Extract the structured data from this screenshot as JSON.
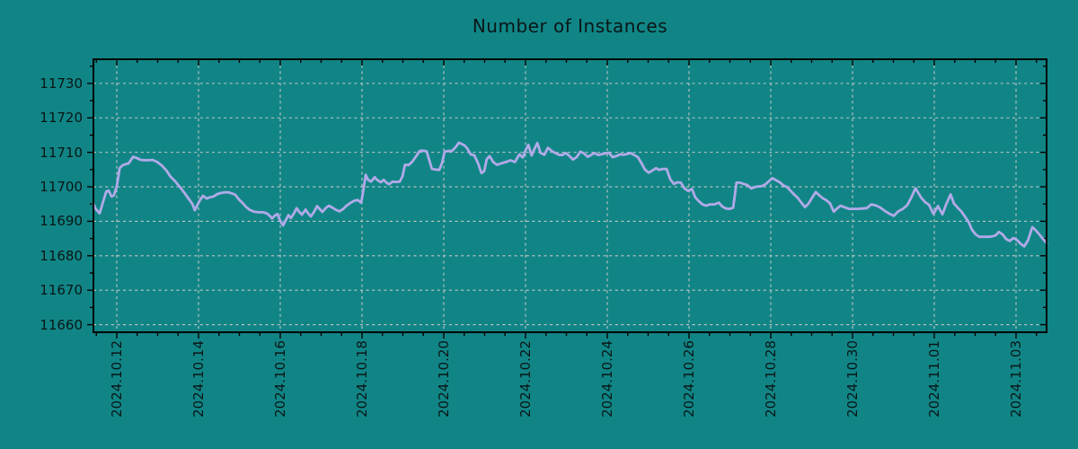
{
  "chart_data": {
    "type": "line",
    "title": "Number of Instances",
    "xlabel": "",
    "ylabel": "",
    "grid": true,
    "legend_position": "none",
    "x_unit": "days since 2024-10-12 00:00",
    "xlim": [
      -0.571,
      22.747
    ],
    "ylim": [
      11657.8,
      11737.0
    ],
    "x_major_tick_positions": [
      0,
      2,
      4,
      6,
      8,
      10,
      12,
      14,
      16,
      18,
      20,
      22
    ],
    "x_tick_labels": [
      "2024.10.12",
      "2024.10.14",
      "2024.10.16",
      "2024.10.18",
      "2024.10.20",
      "2024.10.22",
      "2024.10.24",
      "2024.10.26",
      "2024.10.28",
      "2024.10.30",
      "2024.11.01",
      "2024.11.03"
    ],
    "x_minor_step": 0.5,
    "y_major_ticks": [
      11660,
      11670,
      11680,
      11690,
      11700,
      11710,
      11720,
      11730
    ],
    "y_minor_step": 5,
    "colors": {
      "background": "#118586",
      "line": "#b1aae8",
      "grid": "#c6c6c6",
      "axis": "#000000",
      "text": "#0a1616"
    },
    "series": [
      {
        "name": "instances",
        "points": [
          [
            -0.57,
            11695.0
          ],
          [
            -0.51,
            11693.5
          ],
          [
            -0.42,
            11692.3
          ],
          [
            -0.26,
            11698.6
          ],
          [
            -0.2,
            11698.9
          ],
          [
            -0.13,
            11697.2
          ],
          [
            -0.07,
            11697.5
          ],
          [
            0.0,
            11700.2
          ],
          [
            0.07,
            11705.4
          ],
          [
            0.15,
            11706.3
          ],
          [
            0.29,
            11706.8
          ],
          [
            0.4,
            11708.7
          ],
          [
            0.48,
            11708.4
          ],
          [
            0.59,
            11707.8
          ],
          [
            0.73,
            11707.7
          ],
          [
            0.88,
            11707.8
          ],
          [
            0.99,
            11707.2
          ],
          [
            1.1,
            11706.2
          ],
          [
            1.21,
            11704.8
          ],
          [
            1.32,
            11702.9
          ],
          [
            1.43,
            11701.6
          ],
          [
            1.54,
            11700.0
          ],
          [
            1.65,
            11698.3
          ],
          [
            1.76,
            11696.5
          ],
          [
            1.85,
            11695.0
          ],
          [
            1.91,
            11693.2
          ],
          [
            1.98,
            11694.9
          ],
          [
            2.04,
            11696.2
          ],
          [
            2.11,
            11697.4
          ],
          [
            2.2,
            11696.6
          ],
          [
            2.29,
            11697.0
          ],
          [
            2.37,
            11697.2
          ],
          [
            2.46,
            11697.9
          ],
          [
            2.55,
            11698.2
          ],
          [
            2.64,
            11698.4
          ],
          [
            2.73,
            11698.4
          ],
          [
            2.81,
            11698.1
          ],
          [
            2.9,
            11697.7
          ],
          [
            2.99,
            11696.3
          ],
          [
            3.08,
            11695.3
          ],
          [
            3.16,
            11694.2
          ],
          [
            3.25,
            11693.3
          ],
          [
            3.36,
            11692.8
          ],
          [
            3.47,
            11692.6
          ],
          [
            3.58,
            11692.6
          ],
          [
            3.67,
            11692.3
          ],
          [
            3.74,
            11691.6
          ],
          [
            3.8,
            11690.8
          ],
          [
            3.87,
            11691.7
          ],
          [
            3.93,
            11692.1
          ],
          [
            4.0,
            11690.1
          ],
          [
            4.07,
            11688.8
          ],
          [
            4.13,
            11690.2
          ],
          [
            4.2,
            11691.8
          ],
          [
            4.26,
            11690.9
          ],
          [
            4.33,
            11692.2
          ],
          [
            4.4,
            11693.8
          ],
          [
            4.46,
            11692.8
          ],
          [
            4.53,
            11691.9
          ],
          [
            4.62,
            11693.4
          ],
          [
            4.68,
            11692.3
          ],
          [
            4.75,
            11691.4
          ],
          [
            4.84,
            11693.0
          ],
          [
            4.9,
            11694.4
          ],
          [
            4.97,
            11693.5
          ],
          [
            5.03,
            11692.7
          ],
          [
            5.12,
            11693.9
          ],
          [
            5.19,
            11694.5
          ],
          [
            5.27,
            11694.0
          ],
          [
            5.36,
            11693.3
          ],
          [
            5.45,
            11692.9
          ],
          [
            5.54,
            11693.6
          ],
          [
            5.63,
            11694.6
          ],
          [
            5.71,
            11695.3
          ],
          [
            5.8,
            11695.9
          ],
          [
            5.89,
            11696.2
          ],
          [
            5.98,
            11695.4
          ],
          [
            6.04,
            11699.5
          ],
          [
            6.09,
            11703.5
          ],
          [
            6.15,
            11702.0
          ],
          [
            6.22,
            11701.5
          ],
          [
            6.31,
            11702.8
          ],
          [
            6.37,
            11702.0
          ],
          [
            6.46,
            11701.3
          ],
          [
            6.53,
            11702.0
          ],
          [
            6.59,
            11701.3
          ],
          [
            6.66,
            11700.7
          ],
          [
            6.75,
            11701.5
          ],
          [
            6.84,
            11701.4
          ],
          [
            6.92,
            11701.5
          ],
          [
            6.99,
            11703.0
          ],
          [
            7.05,
            11706.4
          ],
          [
            7.14,
            11706.3
          ],
          [
            7.23,
            11707.3
          ],
          [
            7.32,
            11708.8
          ],
          [
            7.41,
            11710.4
          ],
          [
            7.49,
            11710.5
          ],
          [
            7.58,
            11710.3
          ],
          [
            7.65,
            11707.5
          ],
          [
            7.71,
            11705.2
          ],
          [
            7.8,
            11705.0
          ],
          [
            7.89,
            11704.9
          ],
          [
            7.96,
            11707.0
          ],
          [
            8.02,
            11710.2
          ],
          [
            8.11,
            11710.4
          ],
          [
            8.2,
            11710.4
          ],
          [
            8.29,
            11711.5
          ],
          [
            8.37,
            11712.8
          ],
          [
            8.44,
            11712.4
          ],
          [
            8.51,
            11712.0
          ],
          [
            8.57,
            11711.2
          ],
          [
            8.66,
            11709.4
          ],
          [
            8.75,
            11709.1
          ],
          [
            8.84,
            11706.8
          ],
          [
            8.92,
            11704.0
          ],
          [
            8.99,
            11704.5
          ],
          [
            9.05,
            11708.0
          ],
          [
            9.12,
            11708.9
          ],
          [
            9.21,
            11707.2
          ],
          [
            9.3,
            11706.4
          ],
          [
            9.41,
            11706.8
          ],
          [
            9.52,
            11707.2
          ],
          [
            9.63,
            11707.7
          ],
          [
            9.74,
            11707.2
          ],
          [
            9.85,
            11709.4
          ],
          [
            9.93,
            11708.5
          ],
          [
            10.0,
            11710.5
          ],
          [
            10.07,
            11712.2
          ],
          [
            10.15,
            11709.1
          ],
          [
            10.22,
            11711.0
          ],
          [
            10.29,
            11712.7
          ],
          [
            10.37,
            11709.8
          ],
          [
            10.46,
            11709.3
          ],
          [
            10.55,
            11711.3
          ],
          [
            10.64,
            11710.4
          ],
          [
            10.73,
            11709.8
          ],
          [
            10.81,
            11709.3
          ],
          [
            10.9,
            11709.2
          ],
          [
            10.99,
            11709.8
          ],
          [
            11.08,
            11708.9
          ],
          [
            11.16,
            11707.9
          ],
          [
            11.25,
            11708.6
          ],
          [
            11.34,
            11710.2
          ],
          [
            11.43,
            11709.7
          ],
          [
            11.52,
            11708.7
          ],
          [
            11.6,
            11709.2
          ],
          [
            11.69,
            11709.8
          ],
          [
            11.78,
            11709.2
          ],
          [
            11.87,
            11709.5
          ],
          [
            11.96,
            11709.7
          ],
          [
            12.04,
            11709.9
          ],
          [
            12.13,
            11708.6
          ],
          [
            12.22,
            11708.9
          ],
          [
            12.31,
            11709.4
          ],
          [
            12.4,
            11709.3
          ],
          [
            12.48,
            11709.5
          ],
          [
            12.57,
            11709.8
          ],
          [
            12.66,
            11709.2
          ],
          [
            12.75,
            11708.6
          ],
          [
            12.84,
            11706.8
          ],
          [
            12.92,
            11705.0
          ],
          [
            13.01,
            11704.1
          ],
          [
            13.1,
            11704.7
          ],
          [
            13.19,
            11705.4
          ],
          [
            13.27,
            11704.9
          ],
          [
            13.36,
            11705.2
          ],
          [
            13.45,
            11705.2
          ],
          [
            13.54,
            11702.2
          ],
          [
            13.63,
            11700.8
          ],
          [
            13.71,
            11701.3
          ],
          [
            13.8,
            11701.2
          ],
          [
            13.89,
            11699.5
          ],
          [
            13.98,
            11698.8
          ],
          [
            14.07,
            11699.4
          ],
          [
            14.15,
            11697.0
          ],
          [
            14.24,
            11695.8
          ],
          [
            14.33,
            11694.9
          ],
          [
            14.42,
            11694.5
          ],
          [
            14.51,
            11694.9
          ],
          [
            14.62,
            11694.9
          ],
          [
            14.73,
            11695.4
          ],
          [
            14.81,
            11694.3
          ],
          [
            14.9,
            11693.7
          ],
          [
            14.99,
            11693.6
          ],
          [
            15.08,
            11693.9
          ],
          [
            15.12,
            11697.5
          ],
          [
            15.16,
            11701.2
          ],
          [
            15.25,
            11701.2
          ],
          [
            15.34,
            11700.8
          ],
          [
            15.43,
            11700.5
          ],
          [
            15.52,
            11699.5
          ],
          [
            15.6,
            11699.9
          ],
          [
            15.69,
            11700.1
          ],
          [
            15.78,
            11700.2
          ],
          [
            15.87,
            11700.7
          ],
          [
            15.96,
            11701.7
          ],
          [
            16.04,
            11702.5
          ],
          [
            16.13,
            11701.9
          ],
          [
            16.22,
            11701.3
          ],
          [
            16.31,
            11700.4
          ],
          [
            16.4,
            11699.9
          ],
          [
            16.48,
            11698.9
          ],
          [
            16.57,
            11697.8
          ],
          [
            16.66,
            11696.8
          ],
          [
            16.75,
            11695.4
          ],
          [
            16.84,
            11694.1
          ],
          [
            16.92,
            11695.1
          ],
          [
            17.01,
            11696.8
          ],
          [
            17.1,
            11698.5
          ],
          [
            17.19,
            11697.5
          ],
          [
            17.27,
            11696.7
          ],
          [
            17.36,
            11696.1
          ],
          [
            17.45,
            11695.2
          ],
          [
            17.54,
            11692.8
          ],
          [
            17.63,
            11693.8
          ],
          [
            17.71,
            11694.5
          ],
          [
            17.8,
            11694.1
          ],
          [
            17.91,
            11693.6
          ],
          [
            18.02,
            11693.6
          ],
          [
            18.13,
            11693.6
          ],
          [
            18.24,
            11693.7
          ],
          [
            18.35,
            11693.8
          ],
          [
            18.46,
            11694.9
          ],
          [
            18.57,
            11694.6
          ],
          [
            18.68,
            11694.0
          ],
          [
            18.79,
            11693.0
          ],
          [
            18.9,
            11692.2
          ],
          [
            19.01,
            11691.6
          ],
          [
            19.12,
            11692.9
          ],
          [
            19.23,
            11693.6
          ],
          [
            19.34,
            11694.7
          ],
          [
            19.45,
            11697.2
          ],
          [
            19.54,
            11699.6
          ],
          [
            19.6,
            11698.4
          ],
          [
            19.69,
            11696.7
          ],
          [
            19.78,
            11695.5
          ],
          [
            19.87,
            11694.8
          ],
          [
            19.98,
            11692.1
          ],
          [
            20.09,
            11694.4
          ],
          [
            20.2,
            11692.0
          ],
          [
            20.29,
            11694.9
          ],
          [
            20.4,
            11697.8
          ],
          [
            20.48,
            11695.2
          ],
          [
            20.57,
            11694.0
          ],
          [
            20.66,
            11692.9
          ],
          [
            20.75,
            11691.4
          ],
          [
            20.84,
            11689.8
          ],
          [
            20.92,
            11687.6
          ],
          [
            21.01,
            11686.2
          ],
          [
            21.1,
            11685.5
          ],
          [
            21.21,
            11685.5
          ],
          [
            21.32,
            11685.5
          ],
          [
            21.41,
            11685.6
          ],
          [
            21.5,
            11685.9
          ],
          [
            21.58,
            11686.9
          ],
          [
            21.67,
            11686.2
          ],
          [
            21.76,
            11684.8
          ],
          [
            21.85,
            11684.3
          ],
          [
            21.93,
            11685.1
          ],
          [
            22.02,
            11684.6
          ],
          [
            22.11,
            11683.5
          ],
          [
            22.2,
            11682.7
          ],
          [
            22.29,
            11684.4
          ],
          [
            22.4,
            11688.3
          ],
          [
            22.48,
            11687.4
          ],
          [
            22.57,
            11686.2
          ],
          [
            22.66,
            11684.9
          ],
          [
            22.75,
            11683.6
          ]
        ]
      }
    ]
  }
}
